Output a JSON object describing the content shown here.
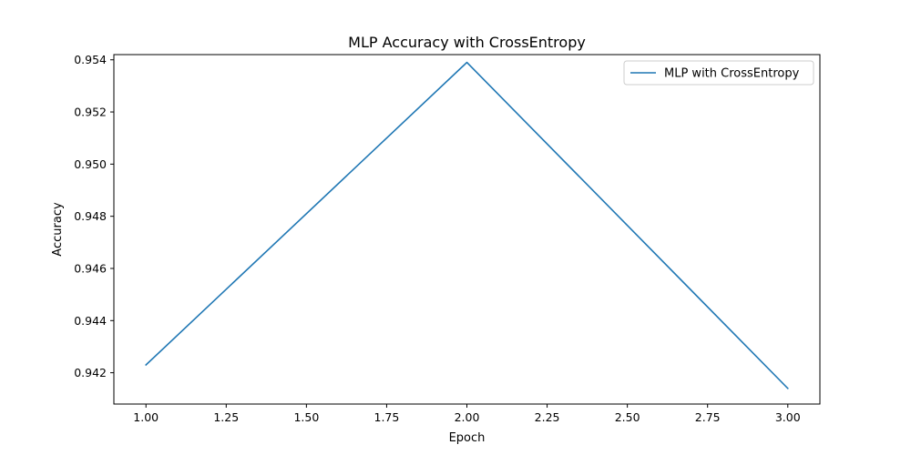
{
  "chart_data": {
    "type": "line",
    "title": "MLP Accuracy with CrossEntropy",
    "xlabel": "Epoch",
    "ylabel": "Accuracy",
    "xlim": [
      0.9,
      3.1
    ],
    "ylim": [
      0.9408,
      0.9542
    ],
    "xticks": [
      1.0,
      1.25,
      1.5,
      1.75,
      2.0,
      2.25,
      2.5,
      2.75,
      3.0
    ],
    "xtick_labels": [
      "1.00",
      "1.25",
      "1.50",
      "1.75",
      "2.00",
      "2.25",
      "2.50",
      "2.75",
      "3.00"
    ],
    "yticks": [
      0.942,
      0.944,
      0.946,
      0.948,
      0.95,
      0.952,
      0.954
    ],
    "ytick_labels": [
      "0.942",
      "0.944",
      "0.946",
      "0.948",
      "0.950",
      "0.952",
      "0.954"
    ],
    "grid": false,
    "legend_position": "top-right",
    "series": [
      {
        "name": "MLP with CrossEntropy",
        "color": "#1f77b4",
        "x": [
          1,
          2,
          3
        ],
        "y": [
          0.9423,
          0.9539,
          0.9414
        ]
      }
    ]
  }
}
